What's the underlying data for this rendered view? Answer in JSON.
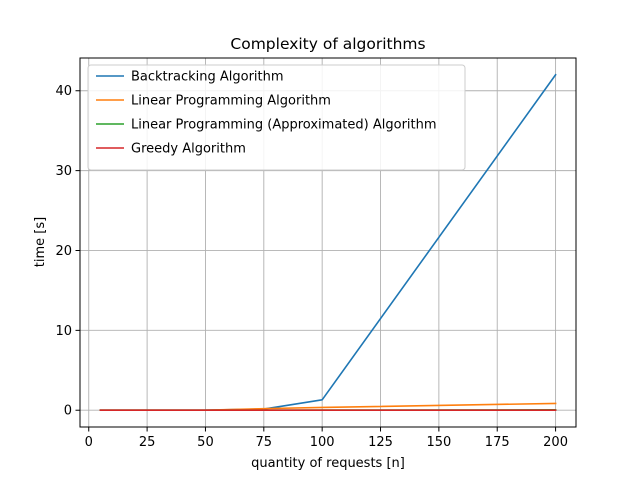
{
  "chart_data": {
    "type": "line",
    "title": "Complexity of algorithms",
    "xlabel": "quantity of requests [n]",
    "ylabel": "time [s]",
    "xlim": [
      -3.75,
      208.75
    ],
    "ylim": [
      -2.1,
      44.1
    ],
    "xticks": [
      0,
      25,
      50,
      75,
      100,
      125,
      150,
      175,
      200
    ],
    "yticks": [
      0,
      10,
      20,
      30,
      40
    ],
    "grid": true,
    "legend_position": "upper-left",
    "x": [
      5,
      50,
      75,
      100,
      200
    ],
    "series": [
      {
        "name": "Backtracking Algorithm",
        "color": "#1f77b4",
        "values": [
          0,
          0,
          0.15,
          1.3,
          42
        ]
      },
      {
        "name": "Linear Programming Algorithm",
        "color": "#ff7f0e",
        "values": [
          0,
          0,
          0.2,
          0.35,
          0.85
        ]
      },
      {
        "name": "Linear Programming (Approximated) Algorithm",
        "color": "#2ca02c",
        "values": [
          0,
          0,
          0,
          0.02,
          0.05
        ]
      },
      {
        "name": "Greedy Algorithm",
        "color": "#d62728",
        "values": [
          0,
          0,
          0,
          0,
          0
        ]
      }
    ]
  }
}
